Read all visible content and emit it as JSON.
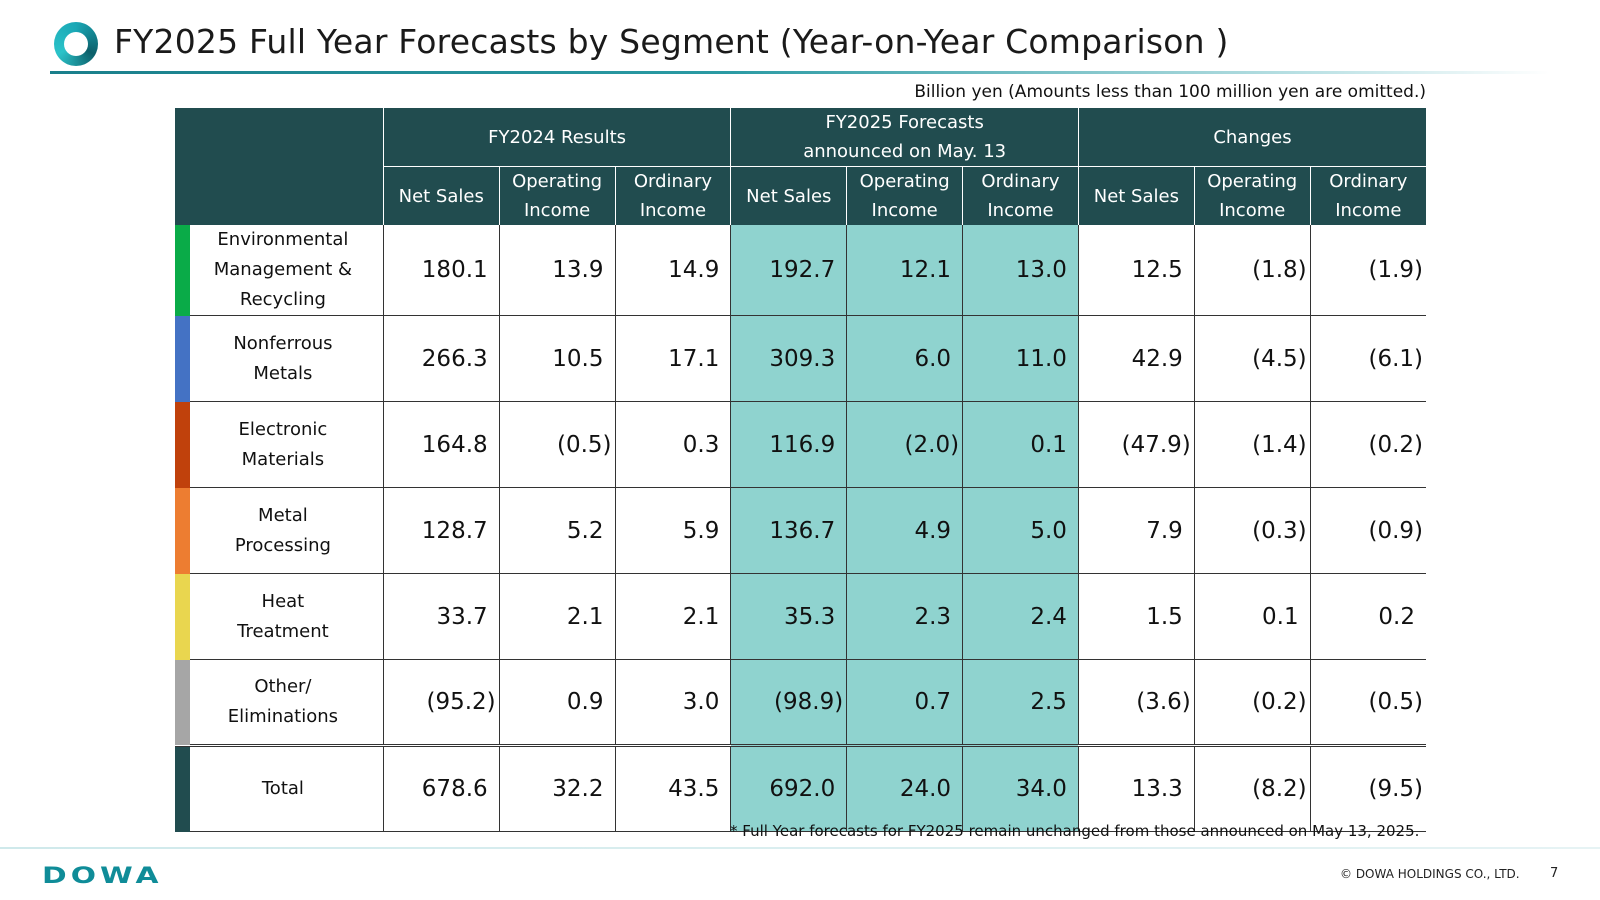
{
  "header": {
    "title": "FY2025 Full Year Forecasts by Segment (Year-on-Year Comparison )",
    "unit_note": "Billion yen (Amounts less than 100 million yen are omitted.)"
  },
  "table": {
    "groups": [
      "FY2024 Results",
      "FY2025 Forecasts\nannounced on May. 13",
      "Changes"
    ],
    "columns": [
      "Net Sales",
      "Operating\nIncome",
      "Ordinary\nIncome"
    ],
    "colors": {
      "header_bg": "#214c4f",
      "forecast_bg": "#8fd3cf"
    },
    "rows": [
      {
        "segment": "Environmental\nManagement &\nRecycling",
        "color": "#0aab48",
        "fy2024": [
          "180.1",
          "13.9",
          "14.9"
        ],
        "fy2025": [
          "192.7",
          "12.1",
          "13.0"
        ],
        "changes": [
          "12.5",
          "(1.8)",
          "(1.9)"
        ]
      },
      {
        "segment": "Nonferrous\nMetals",
        "color": "#4472c4",
        "fy2024": [
          "266.3",
          "10.5",
          "17.1"
        ],
        "fy2025": [
          "309.3",
          "6.0",
          "11.0"
        ],
        "changes": [
          "42.9",
          "(4.5)",
          "(6.1)"
        ]
      },
      {
        "segment": "Electronic\nMaterials",
        "color": "#c0410c",
        "fy2024": [
          "164.8",
          "(0.5)",
          "0.3"
        ],
        "fy2025": [
          "116.9",
          "(2.0)",
          "0.1"
        ],
        "changes": [
          "(47.9)",
          "(1.4)",
          "(0.2)"
        ]
      },
      {
        "segment": "Metal\nProcessing",
        "color": "#ed7d31",
        "fy2024": [
          "128.7",
          "5.2",
          "5.9"
        ],
        "fy2025": [
          "136.7",
          "4.9",
          "5.0"
        ],
        "changes": [
          "7.9",
          "(0.3)",
          "(0.9)"
        ]
      },
      {
        "segment": "Heat\nTreatment",
        "color": "#e9d64f",
        "fy2024": [
          "33.7",
          "2.1",
          "2.1"
        ],
        "fy2025": [
          "35.3",
          "2.3",
          "2.4"
        ],
        "changes": [
          "1.5",
          "0.1",
          "0.2"
        ]
      },
      {
        "segment": "Other/\nEliminations",
        "color": "#a6a6a6",
        "fy2024": [
          "(95.2)",
          "0.9",
          "3.0"
        ],
        "fy2025": [
          "(98.9)",
          "0.7",
          "2.5"
        ],
        "changes": [
          "(3.6)",
          "(0.2)",
          "(0.5)"
        ]
      }
    ],
    "total": {
      "segment": "Total",
      "color": "#214c4f",
      "fy2024": [
        "678.6",
        "32.2",
        "43.5"
      ],
      "fy2025": [
        "692.0",
        "24.0",
        "34.0"
      ],
      "changes": [
        "13.3",
        "(8.2)",
        "(9.5)"
      ]
    }
  },
  "footnote": "* Full Year forecasts for FY2025 remain unchanged from those announced on May 13, 2025.",
  "footer": {
    "brand": "DOWA",
    "copyright": "© DOWA HOLDINGS CO., LTD.",
    "page": "7",
    "brand_color": "#0f8c98"
  }
}
